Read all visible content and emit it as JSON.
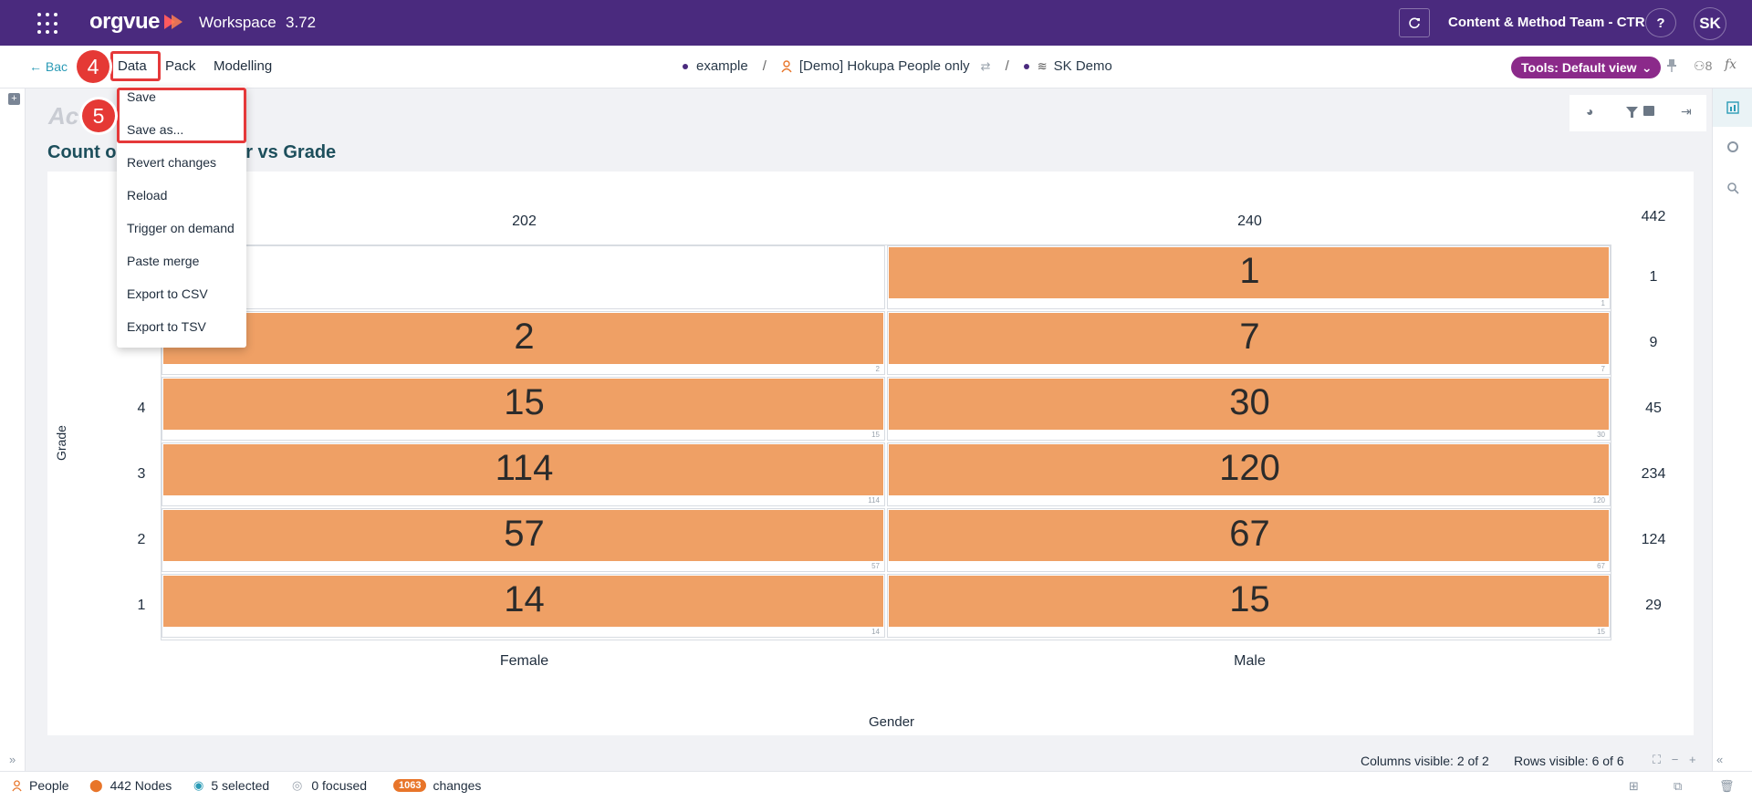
{
  "header": {
    "logo_text": "orgvue",
    "app_title": "Workspace",
    "version": "3.72",
    "team": "Content & Method Team - CTR",
    "help_label": "?",
    "avatar_initials": "SK"
  },
  "subbar": {
    "back_label": "Bac",
    "menu": {
      "data": "Data",
      "pack": "Pack",
      "modelling": "Modelling"
    },
    "breadcrumbs": {
      "first": "example",
      "second": "[Demo] Hokupa People only",
      "third": "SK Demo",
      "separator": "/"
    },
    "tools_label": "Tools: Default view",
    "users_count": "8",
    "fx_label": "fx"
  },
  "steps": {
    "step4": "4",
    "step5": "5"
  },
  "data_menu": {
    "items": [
      "Save",
      "Save as...",
      "Revert changes",
      "Reload",
      "Trigger on demand",
      "Paste merge",
      "Export to CSV",
      "Export to TSV"
    ]
  },
  "chart": {
    "ghost_title": "Ac",
    "title": "Count o",
    "title_tail": "ender vs Grade"
  },
  "chart_data": {
    "type": "table",
    "xlabel": "Gender",
    "ylabel": "Grade",
    "columns": [
      "Female",
      "Male"
    ],
    "column_totals": [
      "202",
      "240"
    ],
    "grand_total": "442",
    "rows": [
      {
        "grade": "",
        "values": [
          null,
          1
        ],
        "total": "1"
      },
      {
        "grade": "",
        "values": [
          2,
          7
        ],
        "total": "9"
      },
      {
        "grade": "4",
        "values": [
          15,
          30
        ],
        "total": "45"
      },
      {
        "grade": "3",
        "values": [
          114,
          120
        ],
        "total": "234"
      },
      {
        "grade": "2",
        "values": [
          57,
          67
        ],
        "total": "124"
      },
      {
        "grade": "1",
        "values": [
          14,
          15
        ],
        "total": "29"
      }
    ],
    "bar_color": "#efa065"
  },
  "footer": {
    "columns_visible": "Columns visible: 2 of 2",
    "rows_visible": "Rows visible: 6 of 6"
  },
  "statusbar": {
    "people": "People",
    "nodes": "442 Nodes",
    "selected": "5 selected",
    "focused": "0 focused",
    "changes_count": "1063",
    "changes_label": "changes"
  },
  "colors": {
    "brand": "#4a2a7e",
    "accent": "#8b2a8a",
    "bar": "#efa065",
    "highlight": "#e5393a"
  }
}
